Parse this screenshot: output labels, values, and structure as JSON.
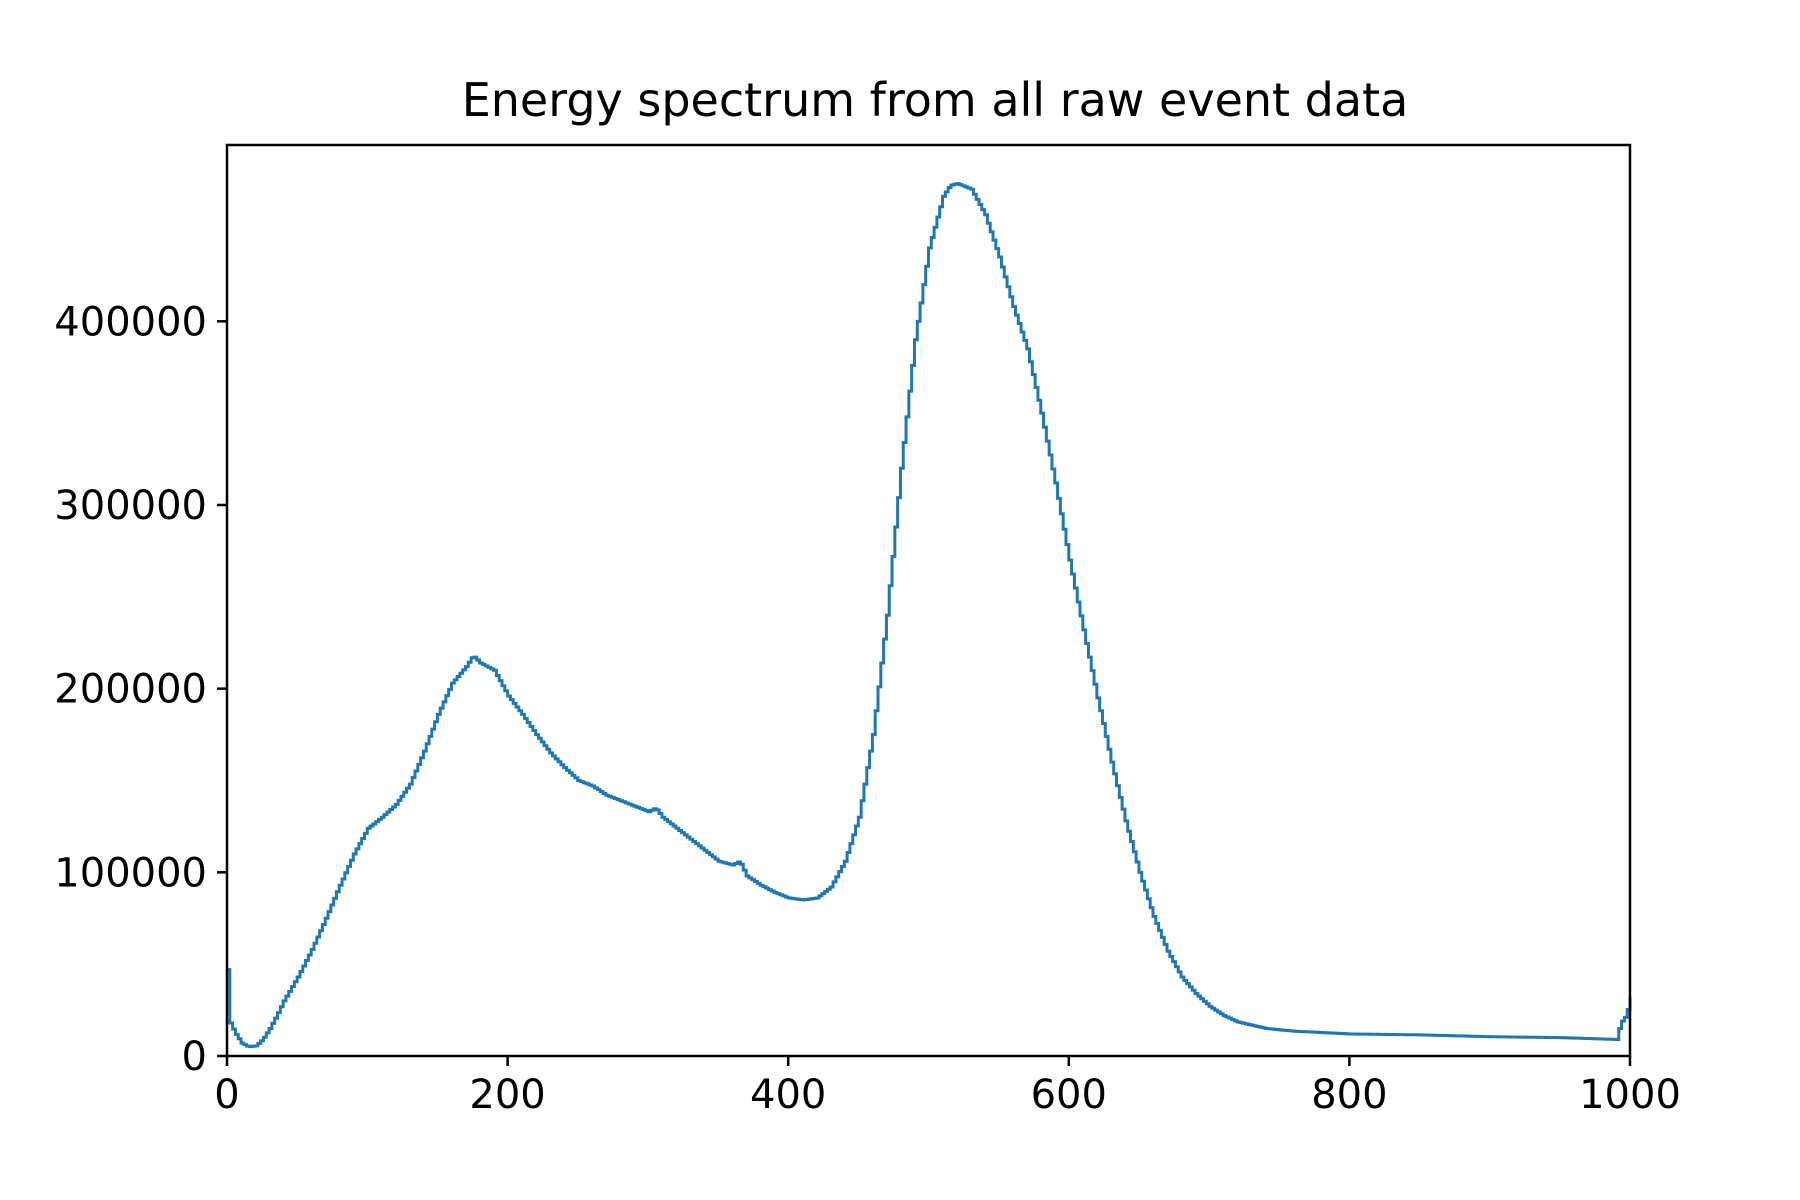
{
  "chart_data": {
    "type": "line",
    "drawstyle": "steps",
    "title": "Energy spectrum from all raw event data",
    "xlabel": "",
    "ylabel": "",
    "xlim": [
      0,
      1000
    ],
    "ylim": [
      0,
      496000
    ],
    "xticks": [
      0,
      200,
      400,
      600,
      800,
      1000
    ],
    "xtick_labels": [
      "0",
      "200",
      "400",
      "600",
      "800",
      "1000"
    ],
    "yticks": [
      0,
      100000,
      200000,
      300000,
      400000
    ],
    "ytick_labels": [
      "0",
      "100000",
      "200000",
      "300000",
      "400000"
    ],
    "grid": false,
    "legend": "none",
    "line_color": "#1f77b4",
    "series": [
      {
        "points": [
          [
            0,
            47000
          ],
          [
            2,
            18000
          ],
          [
            5,
            13000
          ],
          [
            10,
            7000
          ],
          [
            15,
            5000
          ],
          [
            20,
            5500
          ],
          [
            25,
            9000
          ],
          [
            30,
            15000
          ],
          [
            35,
            22000
          ],
          [
            40,
            30000
          ],
          [
            50,
            43000
          ],
          [
            60,
            58000
          ],
          [
            70,
            75000
          ],
          [
            80,
            93000
          ],
          [
            90,
            110000
          ],
          [
            100,
            124000
          ],
          [
            110,
            130000
          ],
          [
            120,
            137000
          ],
          [
            130,
            148000
          ],
          [
            140,
            166000
          ],
          [
            150,
            186000
          ],
          [
            160,
            203000
          ],
          [
            170,
            212000
          ],
          [
            175,
            218000
          ],
          [
            180,
            214000
          ],
          [
            190,
            210000
          ],
          [
            200,
            196000
          ],
          [
            210,
            186000
          ],
          [
            220,
            175000
          ],
          [
            230,
            165000
          ],
          [
            240,
            157000
          ],
          [
            250,
            150000
          ],
          [
            260,
            147000
          ],
          [
            270,
            142000
          ],
          [
            280,
            139000
          ],
          [
            290,
            136000
          ],
          [
            300,
            133000
          ],
          [
            305,
            135000
          ],
          [
            310,
            130000
          ],
          [
            320,
            124000
          ],
          [
            330,
            118000
          ],
          [
            340,
            112000
          ],
          [
            350,
            106000
          ],
          [
            360,
            104000
          ],
          [
            365,
            106000
          ],
          [
            370,
            98000
          ],
          [
            380,
            93000
          ],
          [
            390,
            89000
          ],
          [
            400,
            86000
          ],
          [
            410,
            85000
          ],
          [
            420,
            86000
          ],
          [
            430,
            92000
          ],
          [
            440,
            106000
          ],
          [
            450,
            130000
          ],
          [
            460,
            175000
          ],
          [
            470,
            240000
          ],
          [
            480,
            320000
          ],
          [
            490,
            390000
          ],
          [
            500,
            440000
          ],
          [
            510,
            468000
          ],
          [
            515,
            474000
          ],
          [
            520,
            475000
          ],
          [
            530,
            472000
          ],
          [
            540,
            458000
          ],
          [
            550,
            435000
          ],
          [
            560,
            408000
          ],
          [
            570,
            385000
          ],
          [
            580,
            350000
          ],
          [
            590,
            312000
          ],
          [
            600,
            270000
          ],
          [
            610,
            232000
          ],
          [
            620,
            195000
          ],
          [
            630,
            160000
          ],
          [
            640,
            128000
          ],
          [
            650,
            100000
          ],
          [
            660,
            76000
          ],
          [
            670,
            57000
          ],
          [
            680,
            43000
          ],
          [
            690,
            34000
          ],
          [
            700,
            27000
          ],
          [
            710,
            22000
          ],
          [
            720,
            18500
          ],
          [
            740,
            15000
          ],
          [
            760,
            13500
          ],
          [
            800,
            12000
          ],
          [
            850,
            11500
          ],
          [
            900,
            10500
          ],
          [
            950,
            10000
          ],
          [
            990,
            9000
          ],
          [
            993,
            18000
          ],
          [
            997,
            22000
          ],
          [
            1000,
            32000
          ]
        ]
      }
    ]
  }
}
